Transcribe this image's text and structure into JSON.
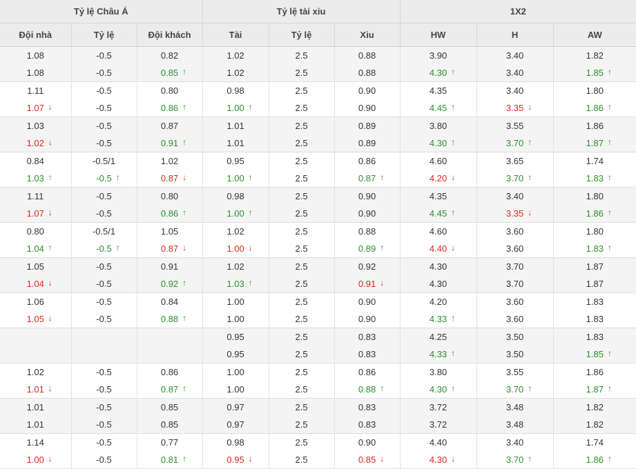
{
  "groups": [
    "Tỷ lệ Châu Á",
    "Tỷ lệ tài xiu",
    "1X2"
  ],
  "columns": [
    "Đội nhà",
    "Tỷ lệ",
    "Đội khách",
    "Tài",
    "Tỷ lệ",
    "Xiu",
    "HW",
    "H",
    "AW"
  ],
  "arrows": {
    "up": "↑",
    "down": "↓"
  },
  "colors": {
    "up": "#2a8f2a",
    "down": "#d32a1e",
    "header_bg": "#ececec",
    "stripe_bg": "#f4f4f4"
  },
  "rows": [
    [
      [
        "1.08",
        "-0.5",
        "0.82",
        "1.02",
        "2.5",
        "0.88",
        "3.90",
        "3.40",
        "1.82"
      ],
      [
        "1.08",
        "-0.5",
        "0.85^",
        "1.02",
        "2.5",
        "0.88",
        "4.30^",
        "3.40",
        "1.85^"
      ]
    ],
    [
      [
        "1.11",
        "-0.5",
        "0.80",
        "0.98",
        "2.5",
        "0.90",
        "4.35",
        "3.40",
        "1.80"
      ],
      [
        "1.07v",
        "-0.5",
        "0.86^",
        "1.00^",
        "2.5",
        "0.90",
        "4.45^",
        "3.35v",
        "1.86^"
      ]
    ],
    [
      [
        "1.03",
        "-0.5",
        "0.87",
        "1.01",
        "2.5",
        "0.89",
        "3.80",
        "3.55",
        "1.86"
      ],
      [
        "1.02v",
        "-0.5",
        "0.91^",
        "1.01",
        "2.5",
        "0.89",
        "4.30^",
        "3.70^",
        "1.87^"
      ]
    ],
    [
      [
        "0.84",
        "-0.5/1",
        "1.02",
        "0.95",
        "2.5",
        "0.86",
        "4.60",
        "3.65",
        "1.74"
      ],
      [
        "1.03^",
        "-0.5^",
        "0.87v",
        "1.00^",
        "2.5",
        "0.87^",
        "4.20v",
        "3.70^",
        "1.83^"
      ]
    ],
    [
      [
        "1.11",
        "-0.5",
        "0.80",
        "0.98",
        "2.5",
        "0.90",
        "4.35",
        "3.40",
        "1.80"
      ],
      [
        "1.07v",
        "-0.5",
        "0.86^",
        "1.00^",
        "2.5",
        "0.90",
        "4.45^",
        "3.35v",
        "1.86^"
      ]
    ],
    [
      [
        "0.80",
        "-0.5/1",
        "1.05",
        "1.02",
        "2.5",
        "0.88",
        "4.60",
        "3.60",
        "1.80"
      ],
      [
        "1.04^",
        "-0.5^",
        "0.87v",
        "1.00v",
        "2.5",
        "0.89^",
        "4.40v",
        "3.60",
        "1.83^"
      ]
    ],
    [
      [
        "1.05",
        "-0.5",
        "0.91",
        "1.02",
        "2.5",
        "0.92",
        "4.30",
        "3.70",
        "1.87"
      ],
      [
        "1.04v",
        "-0.5",
        "0.92^",
        "1.03^",
        "2.5",
        "0.91v",
        "4.30",
        "3.70",
        "1.87"
      ]
    ],
    [
      [
        "1.06",
        "-0.5",
        "0.84",
        "1.00",
        "2.5",
        "0.90",
        "4.20",
        "3.60",
        "1.83"
      ],
      [
        "1.05v",
        "-0.5",
        "0.88^",
        "1.00",
        "2.5",
        "0.90",
        "4.33^",
        "3.60",
        "1.83"
      ]
    ],
    [
      [
        "",
        "",
        "",
        "0.95",
        "2.5",
        "0.83",
        "4.25",
        "3.50",
        "1.83"
      ],
      [
        "",
        "",
        "",
        "0.95",
        "2.5",
        "0.83",
        "4.33^",
        "3.50",
        "1.85^"
      ]
    ],
    [
      [
        "1.02",
        "-0.5",
        "0.86",
        "1.00",
        "2.5",
        "0.86",
        "3.80",
        "3.55",
        "1.86"
      ],
      [
        "1.01v",
        "-0.5",
        "0.87^",
        "1.00",
        "2.5",
        "0.88^",
        "4.30^",
        "3.70^",
        "1.87^"
      ]
    ],
    [
      [
        "1.01",
        "-0.5",
        "0.85",
        "0.97",
        "2.5",
        "0.83",
        "3.72",
        "3.48",
        "1.82"
      ],
      [
        "1.01",
        "-0.5",
        "0.85",
        "0.97",
        "2.5",
        "0.83",
        "3.72",
        "3.48",
        "1.82"
      ]
    ],
    [
      [
        "1.14",
        "-0.5",
        "0.77",
        "0.98",
        "2.5",
        "0.90",
        "4.40",
        "3.40",
        "1.74"
      ],
      [
        "1.00v",
        "-0.5",
        "0.81^",
        "0.95v",
        "2.5",
        "0.85v",
        "4.30v",
        "3.70^",
        "1.86^"
      ]
    ]
  ]
}
